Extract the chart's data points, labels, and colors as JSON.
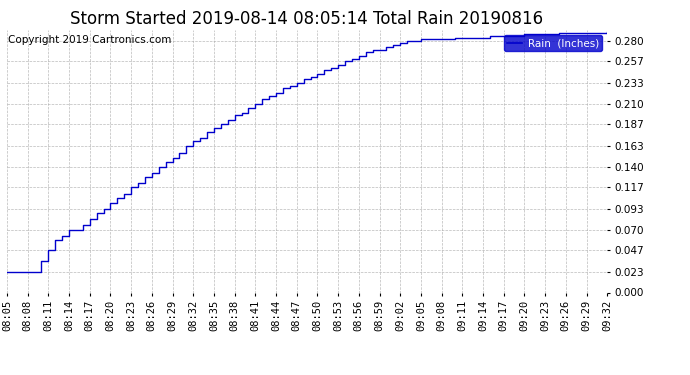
{
  "title": "Storm Started 2019-08-14 08:05:14 Total Rain 20190816",
  "copyright_text": "Copyright 2019 Cartronics.com",
  "legend_label": "Rain  (Inches)",
  "line_color": "#0000CC",
  "legend_bg": "#0000CC",
  "legend_text_color": "#ffffff",
  "background_color": "#ffffff",
  "grid_color": "#aaaaaa",
  "y_ticks": [
    0.0,
    0.023,
    0.047,
    0.07,
    0.093,
    0.117,
    0.14,
    0.163,
    0.187,
    0.21,
    0.233,
    0.257,
    0.28
  ],
  "x_tick_labels": [
    "08:05",
    "08:08",
    "08:11",
    "08:14",
    "08:17",
    "08:20",
    "08:23",
    "08:26",
    "08:29",
    "08:32",
    "08:35",
    "08:38",
    "08:41",
    "08:44",
    "08:47",
    "08:50",
    "08:53",
    "08:56",
    "08:59",
    "09:02",
    "09:05",
    "09:08",
    "09:11",
    "09:14",
    "09:17",
    "09:20",
    "09:23",
    "09:26",
    "09:29",
    "09:32"
  ],
  "ylim": [
    0.0,
    0.2917
  ],
  "xlim": [
    0,
    87
  ],
  "title_fontsize": 12,
  "tick_fontsize": 7.5,
  "copyright_fontsize": 7.5,
  "keypoints": [
    [
      0,
      0.023
    ],
    [
      4,
      0.023
    ],
    [
      5,
      0.035
    ],
    [
      6,
      0.047
    ],
    [
      7,
      0.058
    ],
    [
      8,
      0.063
    ],
    [
      9,
      0.07
    ],
    [
      10,
      0.07
    ],
    [
      11,
      0.075
    ],
    [
      12,
      0.082
    ],
    [
      13,
      0.088
    ],
    [
      14,
      0.093
    ],
    [
      15,
      0.1
    ],
    [
      16,
      0.105
    ],
    [
      17,
      0.11
    ],
    [
      18,
      0.117
    ],
    [
      19,
      0.122
    ],
    [
      20,
      0.128
    ],
    [
      21,
      0.133
    ],
    [
      22,
      0.14
    ],
    [
      23,
      0.145
    ],
    [
      24,
      0.15
    ],
    [
      25,
      0.155
    ],
    [
      26,
      0.163
    ],
    [
      27,
      0.168
    ],
    [
      28,
      0.172
    ],
    [
      29,
      0.178
    ],
    [
      30,
      0.183
    ],
    [
      31,
      0.187
    ],
    [
      32,
      0.192
    ],
    [
      33,
      0.197
    ],
    [
      34,
      0.2
    ],
    [
      35,
      0.205
    ],
    [
      36,
      0.21
    ],
    [
      37,
      0.215
    ],
    [
      38,
      0.218
    ],
    [
      39,
      0.222
    ],
    [
      40,
      0.227
    ],
    [
      41,
      0.23
    ],
    [
      42,
      0.233
    ],
    [
      43,
      0.237
    ],
    [
      44,
      0.24
    ],
    [
      45,
      0.243
    ],
    [
      46,
      0.247
    ],
    [
      47,
      0.25
    ],
    [
      48,
      0.253
    ],
    [
      49,
      0.257
    ],
    [
      50,
      0.26
    ],
    [
      51,
      0.263
    ],
    [
      52,
      0.267
    ],
    [
      53,
      0.27
    ],
    [
      54,
      0.27
    ],
    [
      55,
      0.273
    ],
    [
      56,
      0.275
    ],
    [
      57,
      0.277
    ],
    [
      58,
      0.28
    ],
    [
      59,
      0.28
    ],
    [
      60,
      0.282
    ],
    [
      65,
      0.283
    ],
    [
      70,
      0.285
    ],
    [
      75,
      0.287
    ],
    [
      80,
      0.288
    ],
    [
      87,
      0.29
    ]
  ]
}
